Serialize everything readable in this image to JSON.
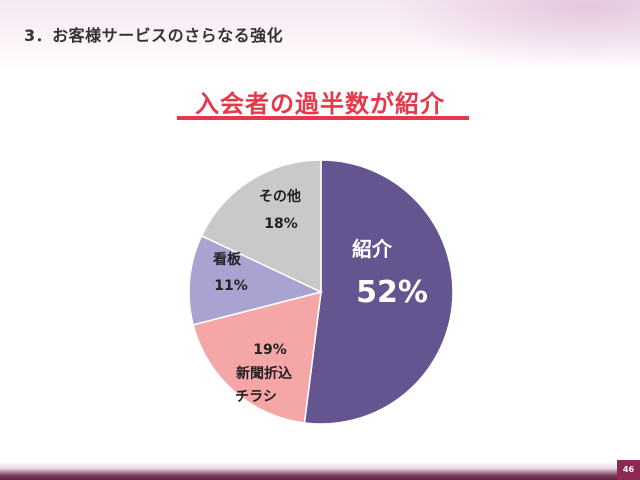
{
  "header": {
    "section_title": "3．お客様サービスのさらなる強化"
  },
  "headline": "入会者の過半数が紹介",
  "page_number": "46",
  "chart_data": {
    "type": "pie",
    "title": "",
    "slices": [
      {
        "label_lines": [
          "紹介"
        ],
        "value": 52,
        "value_label": "52%",
        "color": "#645590"
      },
      {
        "label_lines": [
          "新聞折込",
          "チラシ"
        ],
        "value": 19,
        "value_label": "19%",
        "color": "#f5a7a8"
      },
      {
        "label_lines": [
          "看板"
        ],
        "value": 11,
        "value_label": "11%",
        "color": "#a9a3d2"
      },
      {
        "label_lines": [
          "その他"
        ],
        "value": 18,
        "value_label": "18%",
        "color": "#c9c9c9"
      }
    ]
  }
}
